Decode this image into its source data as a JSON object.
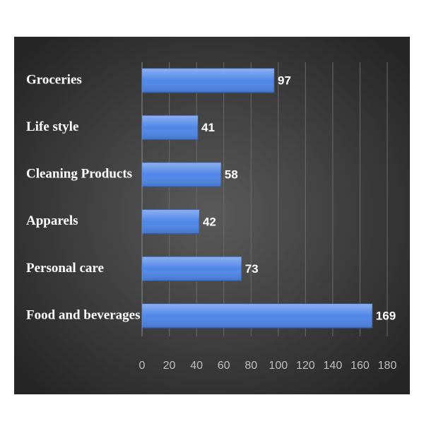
{
  "chart_data": {
    "type": "bar",
    "orientation": "horizontal",
    "categories": [
      "Groceries",
      "Life style",
      "Cleaning Products",
      "Apparels",
      "Personal care",
      "Food and beverages"
    ],
    "values": [
      97,
      41,
      58,
      42,
      73,
      169
    ],
    "color": "#4f86e8",
    "xlim": [
      0,
      180
    ],
    "xticks": [
      0,
      20,
      40,
      60,
      80,
      100,
      120,
      140,
      160,
      180
    ],
    "grid": true
  }
}
